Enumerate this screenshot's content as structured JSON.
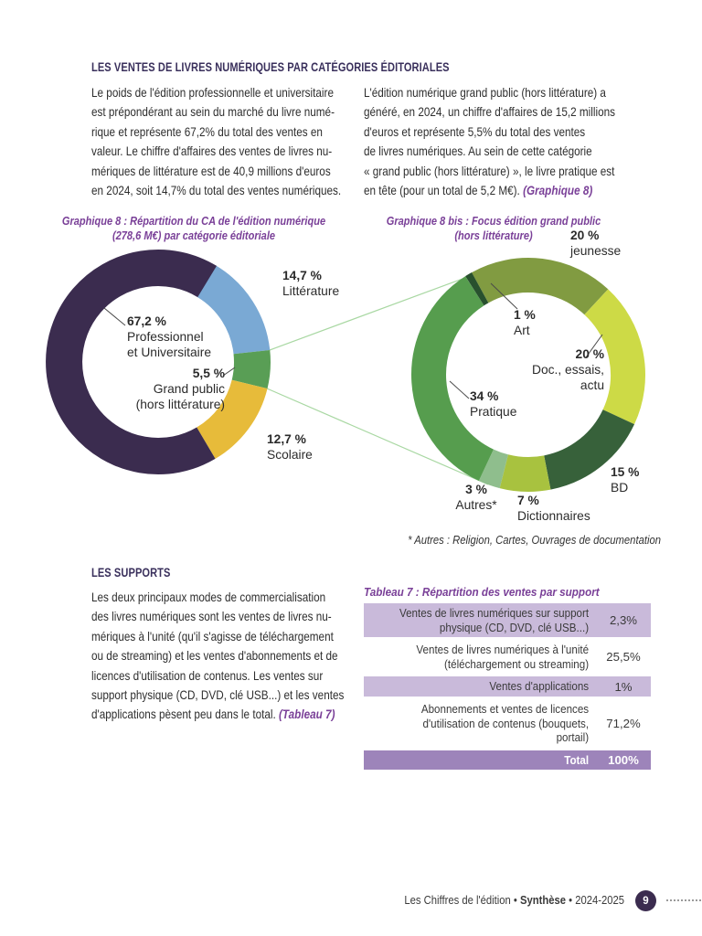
{
  "page": {
    "section1_heading": "LES VENTES DE LIVRES NUMÉRIQUES PAR CATÉGORIES ÉDITORIALES",
    "col1_text": "Le poids de l'édition professionnelle et universitaire\nest prépondérant au sein du marché du livre numé-\nrique et représente 67,2% du total des ventes en\nvaleur. Le chiffre d'affaires des ventes de livres nu-\nmériques de littérature est de 40,9 millions d'euros\nen 2024, soit 14,7% du total des ventes numériques.",
    "col2_text": "L'édition numérique grand public (hors littérature) a\ngénéré, en 2024, un chiffre d'affaires de 15,2 millions\nd'euros et représente 5,5% du total des ventes\nde livres numériques. Au sein de cette catégorie\n« grand public (hors littérature) », le livre pratique est\nen tête (pour un total de 5,2 M€). ",
    "col2_ref": "(Graphique 8)",
    "section2_heading": "LES SUPPORTS",
    "supports_text": "Les deux principaux modes de commercialisation\ndes livres numériques sont les ventes de livres nu-\nmériques à l'unité (qu'il s'agisse de téléchargement\nou de streaming) et les ventes d'abonnements et de\nlicences d'utilisation de contenus. Les ventes sur\nsupport physique (CD, DVD, clé USB...) et les ventes\nd'applications pèsent peu dans le total. ",
    "supports_ref": "(Tableau 7)",
    "footnote": "* Autres : Religion, Cartes, Ouvrages de documentation"
  },
  "chart_data": [
    {
      "type": "pie",
      "variant": "donut",
      "title": "Graphique 8 : Répartition du CA de l'édition numérique\n(278,6 M€) par catégorie éditoriale",
      "total_label": "278,6 M€",
      "start_angle": 31,
      "segments": [
        {
          "label": "Littérature",
          "label_display": "Littérature",
          "value": 14.7,
          "display": "14,7 %",
          "color": "#7aa9d4"
        },
        {
          "label": "Grand public (hors littérature)",
          "label_display": "Grand public\n(hors littérature)",
          "value": 5.5,
          "display": "5,5 %",
          "color": "#599e55"
        },
        {
          "label": "Scolaire",
          "label_display": "Scolaire",
          "value": 12.7,
          "display": "12,7 %",
          "color": "#e7bb3a"
        },
        {
          "label": "Professionnel et Universitaire",
          "label_display": "Professionnel\net Universitaire",
          "value": 67.2,
          "display": "67,2 %",
          "color": "#3b2c4f"
        }
      ]
    },
    {
      "type": "pie",
      "variant": "donut",
      "title": "Graphique 8 bis : Focus édition grand public\n(hors littérature)",
      "note": "* Autres : Religion, Cartes, Ouvrages de documentation",
      "start_angle": -29,
      "segments": [
        {
          "label": "jeunesse",
          "label_display": "jeunesse",
          "value": 20,
          "display": "20 %",
          "color": "#819b41"
        },
        {
          "label": "Doc., essais, actu",
          "label_display": "Doc., essais,\nactu",
          "value": 20,
          "display": "20 %",
          "color": "#cdda46"
        },
        {
          "label": "BD",
          "label_display": "BD",
          "value": 15,
          "display": "15 %",
          "color": "#37613a"
        },
        {
          "label": "Dictionnaires",
          "label_display": "Dictionnaires",
          "value": 7,
          "display": "7 %",
          "color": "#a8c23f"
        },
        {
          "label": "Autres*",
          "label_display": "Autres*",
          "value": 3,
          "display": "3 %",
          "color": "#8fbe8d"
        },
        {
          "label": "Pratique",
          "label_display": "Pratique",
          "value": 34,
          "display": "34 %",
          "color": "#569d4e"
        },
        {
          "label": "Art",
          "label_display": "Art",
          "value": 1,
          "display": "1 %",
          "color": "#28512e"
        }
      ]
    }
  ],
  "table": {
    "title": "Tableau 7 : Répartition des ventes par support",
    "rows": [
      {
        "label": "Ventes de livres numériques sur support\nphysique (CD, DVD, clé USB...)",
        "value": "2,3%"
      },
      {
        "label": "Ventes de livres numériques à l'unité\n(téléchargement ou streaming)",
        "value": "25,5%"
      },
      {
        "label": "Ventes d'applications",
        "value": "1%"
      },
      {
        "label": "Abonnements et ventes de licences\nd'utilisation de contenus (bouquets, portail)",
        "value": "71,2%"
      },
      {
        "label": "Total",
        "value": "100%"
      }
    ]
  },
  "footer": {
    "text_part1": "Les Chiffres de l'édition • ",
    "text_bold": "Synthèse",
    "text_part2": " • 2024-2025",
    "page_number": "9"
  },
  "colors": {
    "heading": "#3a305c",
    "accent_purple": "#7a4098",
    "table_row_alt": "#c9bada",
    "table_total": "#9d84ba",
    "footer_badge": "#3b2c4f",
    "connector_line": "#a9d8a3"
  }
}
